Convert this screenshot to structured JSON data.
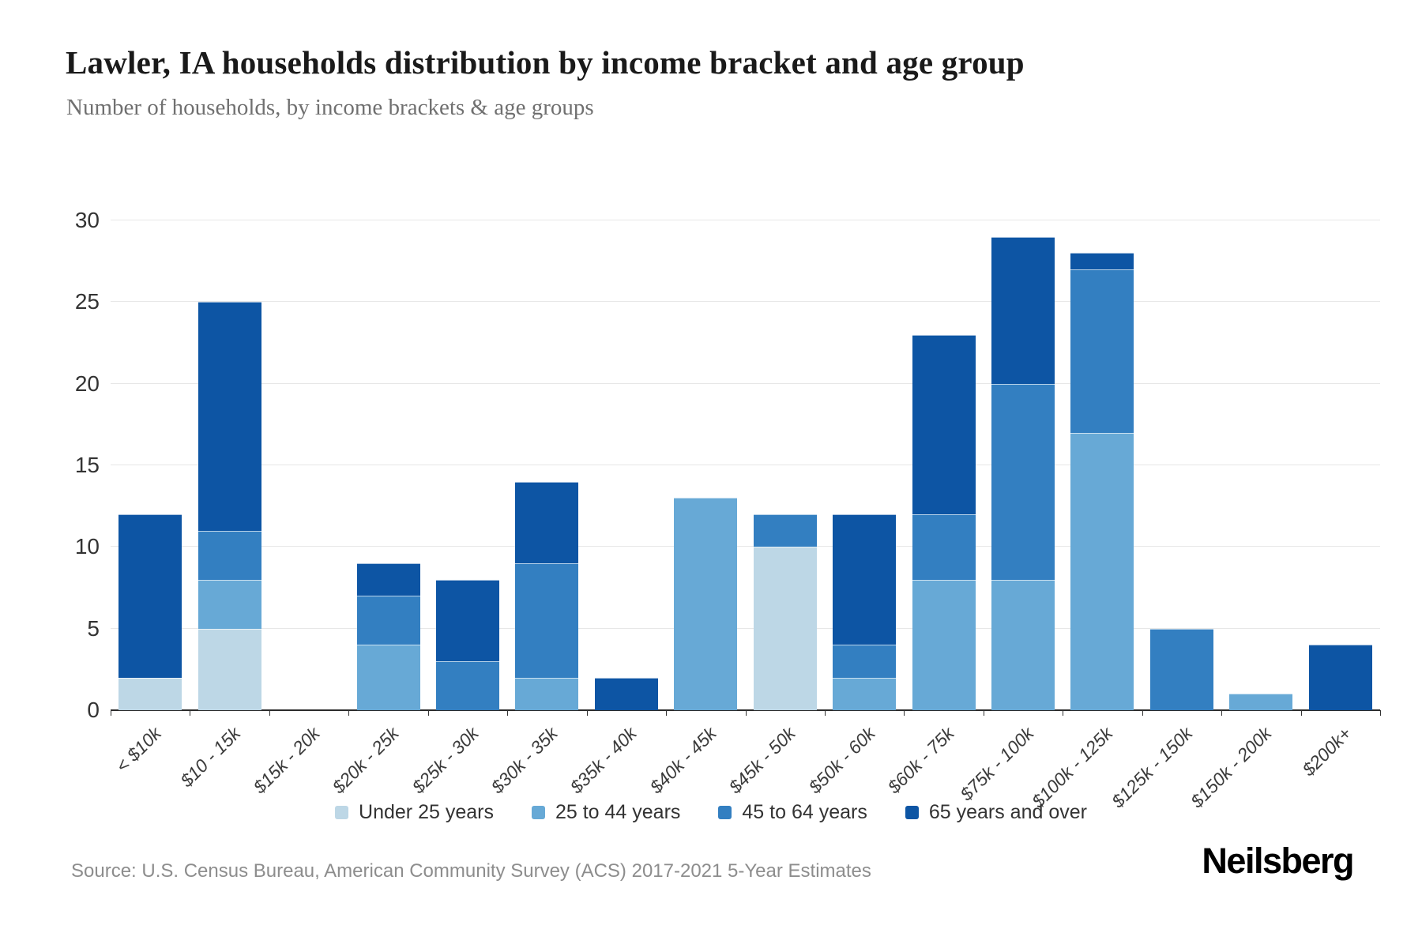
{
  "header": {
    "title": "Lawler, IA households distribution by income bracket and age group",
    "subtitle": "Number of households, by income brackets & age groups"
  },
  "footer": {
    "source": "Source: U.S. Census Bureau, American Community Survey (ACS) 2017-2021 5-Year Estimates",
    "logo": "Neilsberg"
  },
  "chart_data": {
    "type": "bar",
    "stacked": true,
    "title": "Lawler, IA households distribution by income bracket and age group",
    "xlabel": "",
    "ylabel": "Number of households",
    "ylim": [
      0,
      30
    ],
    "yticks": [
      0,
      5,
      10,
      15,
      20,
      25,
      30
    ],
    "grid": true,
    "legend_position": "bottom",
    "categories": [
      "< $10k",
      "$10 - 15k",
      "$15k - 20k",
      "$20k - 25k",
      "$25k - 30k",
      "$30k - 35k",
      "$35k - 40k",
      "$40k - 45k",
      "$45k - 50k",
      "$50k - 60k",
      "$60k - 75k",
      "$75k - 100k",
      "$100k - 125k",
      "$125k - 150k",
      "$150k - 200k",
      "$200k+"
    ],
    "series": [
      {
        "name": "Under 25 years",
        "color": "#bdd7e6",
        "values": [
          2,
          5,
          0,
          0,
          0,
          0,
          0,
          0,
          10,
          0,
          0,
          0,
          0,
          0,
          0,
          0
        ]
      },
      {
        "name": "25 to 44 years",
        "color": "#67a9d6",
        "values": [
          0,
          3,
          0,
          4,
          0,
          2,
          0,
          13,
          0,
          2,
          8,
          8,
          17,
          0,
          1,
          0
        ]
      },
      {
        "name": "45 to 64 years",
        "color": "#337fc1",
        "values": [
          0,
          3,
          0,
          3,
          3,
          7,
          0,
          0,
          2,
          2,
          4,
          12,
          10,
          5,
          0,
          0
        ]
      },
      {
        "name": "65 years and over",
        "color": "#0d55a4",
        "values": [
          10,
          14,
          0,
          2,
          5,
          5,
          2,
          0,
          0,
          8,
          11,
          9,
          1,
          0,
          0,
          4
        ]
      }
    ]
  },
  "colors": {
    "gridline": "#e7e7e7",
    "axis": "#2b2b2b",
    "accent_dark_blue": "#0d55a4"
  }
}
